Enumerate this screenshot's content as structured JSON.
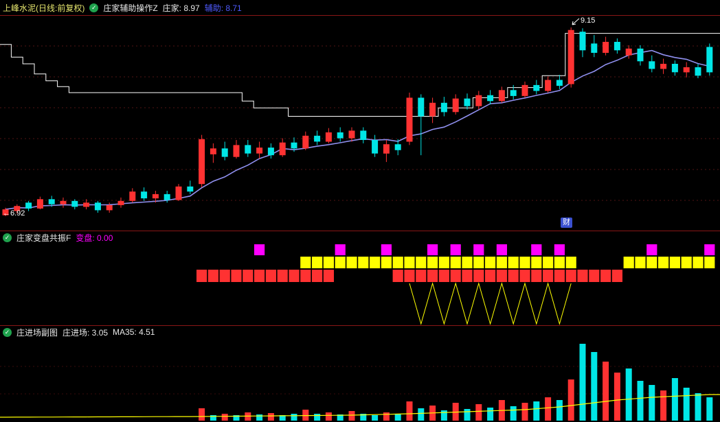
{
  "header": {
    "title": "上峰水泥(日线:前复权)",
    "indicator_name": "庄家辅助操作Z",
    "zhuangjia": "庄家: 8.97",
    "fuzhu": "辅助: 8.71"
  },
  "panel2_header": {
    "name": "庄家变盘共振F",
    "value": "变盘: 0.00"
  },
  "panel3_header": {
    "name": "庄进场副图",
    "value1": "庄进场: 3.05",
    "value2": "MA35: 4.51"
  },
  "annotations": {
    "high": "9.15",
    "low": "6.92",
    "low_arrow": "←",
    "badge": "财"
  },
  "icons": {
    "indicator_toggle": "✓"
  },
  "colors": {
    "up": "#ff3232",
    "down": "#00e6e6",
    "ma": "#9090f0",
    "white_line": "#ffffff",
    "yellow": "#ffff00",
    "magenta": "#ff00ff",
    "grid": "#521414",
    "separator": "#8a1616"
  },
  "chart_data": [
    {
      "id": "main",
      "type": "candlestick",
      "title": "上峰水泥 日线 前复权",
      "indicator": "庄家辅助操作Z",
      "values": {
        "庄家": 8.97,
        "辅助": 8.71
      },
      "price_high_label": 9.15,
      "price_low_label": 6.92,
      "candles": [
        [
          6.93,
          7.02,
          6.92,
          7.0
        ],
        [
          6.98,
          7.06,
          6.95,
          7.04
        ],
        [
          7.08,
          7.1,
          6.98,
          7.01
        ],
        [
          7.01,
          7.15,
          7.0,
          7.12
        ],
        [
          7.12,
          7.16,
          7.03,
          7.06
        ],
        [
          7.06,
          7.14,
          7.02,
          7.1
        ],
        [
          7.1,
          7.12,
          7.0,
          7.03
        ],
        [
          7.03,
          7.12,
          7.0,
          7.08
        ],
        [
          7.08,
          7.1,
          6.96,
          6.99
        ],
        [
          6.99,
          7.08,
          6.96,
          7.05
        ],
        [
          7.05,
          7.14,
          7.02,
          7.1
        ],
        [
          7.1,
          7.25,
          7.08,
          7.21
        ],
        [
          7.21,
          7.26,
          7.1,
          7.13
        ],
        [
          7.13,
          7.22,
          7.08,
          7.18
        ],
        [
          7.18,
          7.22,
          7.08,
          7.11
        ],
        [
          7.11,
          7.3,
          7.1,
          7.27
        ],
        [
          7.27,
          7.34,
          7.18,
          7.21
        ],
        [
          7.3,
          7.88,
          7.26,
          7.83
        ],
        [
          7.65,
          7.78,
          7.55,
          7.72
        ],
        [
          7.72,
          7.8,
          7.58,
          7.62
        ],
        [
          7.62,
          7.82,
          7.6,
          7.76
        ],
        [
          7.76,
          7.82,
          7.62,
          7.66
        ],
        [
          7.66,
          7.8,
          7.6,
          7.73
        ],
        [
          7.73,
          7.78,
          7.6,
          7.64
        ],
        [
          7.64,
          7.84,
          7.62,
          7.79
        ],
        [
          7.79,
          7.85,
          7.68,
          7.72
        ],
        [
          7.72,
          7.92,
          7.7,
          7.87
        ],
        [
          7.87,
          7.93,
          7.76,
          7.8
        ],
        [
          7.8,
          7.96,
          7.78,
          7.91
        ],
        [
          7.91,
          7.97,
          7.8,
          7.84
        ],
        [
          7.84,
          7.97,
          7.8,
          7.93
        ],
        [
          7.93,
          7.97,
          7.78,
          7.82
        ],
        [
          7.82,
          7.88,
          7.62,
          7.66
        ],
        [
          7.66,
          7.82,
          7.56,
          7.77
        ],
        [
          7.77,
          7.83,
          7.64,
          7.7
        ],
        [
          7.8,
          8.38,
          7.76,
          8.32
        ],
        [
          8.32,
          8.36,
          7.64,
          8.1
        ],
        [
          8.1,
          8.32,
          8.02,
          8.26
        ],
        [
          8.26,
          8.33,
          8.1,
          8.15
        ],
        [
          8.15,
          8.36,
          8.12,
          8.31
        ],
        [
          8.31,
          8.37,
          8.18,
          8.22
        ],
        [
          8.22,
          8.4,
          8.18,
          8.35
        ],
        [
          8.35,
          8.41,
          8.24,
          8.28
        ],
        [
          8.28,
          8.45,
          8.26,
          8.41
        ],
        [
          8.41,
          8.47,
          8.3,
          8.34
        ],
        [
          8.34,
          8.51,
          8.32,
          8.47
        ],
        [
          8.47,
          8.53,
          8.36,
          8.4
        ],
        [
          8.4,
          8.57,
          8.38,
          8.53
        ],
        [
          8.53,
          8.59,
          8.42,
          8.46
        ],
        [
          8.48,
          9.15,
          8.44,
          9.12
        ],
        [
          9.1,
          9.14,
          8.8,
          8.88
        ],
        [
          8.96,
          9.06,
          8.8,
          8.85
        ],
        [
          8.85,
          9.04,
          8.82,
          8.98
        ],
        [
          8.98,
          9.02,
          8.84,
          8.88
        ],
        [
          8.82,
          8.94,
          8.78,
          8.9
        ],
        [
          8.9,
          8.94,
          8.7,
          8.75
        ],
        [
          8.75,
          8.82,
          8.62,
          8.66
        ],
        [
          8.66,
          8.78,
          8.6,
          8.72
        ],
        [
          8.72,
          8.76,
          8.58,
          8.62
        ],
        [
          8.62,
          8.74,
          8.56,
          8.68
        ],
        [
          8.68,
          8.72,
          8.55,
          8.58
        ],
        [
          8.92,
          8.96,
          8.58,
          8.62
        ]
      ],
      "white_line": [
        8.95,
        8.8,
        8.72,
        8.6,
        8.52,
        8.45,
        8.38,
        8.38,
        8.38,
        8.38,
        8.38,
        8.38,
        8.38,
        8.38,
        8.38,
        8.38,
        8.38,
        8.38,
        8.38,
        8.38,
        8.38,
        8.28,
        8.2,
        8.2,
        8.2,
        8.1,
        8.1,
        8.1,
        8.1,
        8.1,
        8.1,
        8.1,
        8.1,
        8.1,
        8.1,
        8.1,
        8.1,
        8.1,
        8.2,
        8.2,
        8.2,
        8.32,
        8.32,
        8.32,
        8.44,
        8.44,
        8.44,
        8.58,
        8.58,
        9.08,
        9.08,
        9.08,
        9.08,
        9.08,
        9.08,
        9.08,
        9.08,
        9.08,
        9.08,
        9.08,
        9.08,
        9.08
      ],
      "ma_period": 8
    },
    {
      "id": "resonance",
      "type": "heatmap",
      "title": "庄家变盘共振F",
      "values": {
        "变盘": 0.0
      },
      "magenta_cols": [
        22,
        29,
        33,
        37,
        39,
        41,
        43,
        46,
        48,
        56,
        61
      ],
      "yellow_ranges": [
        [
          26,
          49
        ],
        [
          54,
          61
        ]
      ],
      "red_ranges": [
        [
          17,
          28
        ],
        [
          34,
          53
        ]
      ],
      "zigzag": {
        "from": 35,
        "to": 49
      }
    },
    {
      "id": "entry",
      "type": "bar",
      "title": "庄进场副图",
      "values": {
        "庄进场": 3.05,
        "MA35": 4.51
      },
      "bars": [
        [
          17,
          18,
          "r"
        ],
        [
          18,
          8,
          "c"
        ],
        [
          19,
          10,
          "r"
        ],
        [
          20,
          8,
          "c"
        ],
        [
          21,
          12,
          "r"
        ],
        [
          22,
          9,
          "c"
        ],
        [
          23,
          11,
          "r"
        ],
        [
          24,
          8,
          "c"
        ],
        [
          25,
          10,
          "c"
        ],
        [
          26,
          16,
          "r"
        ],
        [
          27,
          10,
          "c"
        ],
        [
          28,
          12,
          "r"
        ],
        [
          29,
          9,
          "c"
        ],
        [
          30,
          14,
          "r"
        ],
        [
          31,
          10,
          "c"
        ],
        [
          32,
          8,
          "c"
        ],
        [
          33,
          12,
          "r"
        ],
        [
          34,
          10,
          "c"
        ],
        [
          35,
          28,
          "r"
        ],
        [
          36,
          18,
          "c"
        ],
        [
          37,
          22,
          "r"
        ],
        [
          38,
          15,
          "c"
        ],
        [
          39,
          26,
          "r"
        ],
        [
          40,
          17,
          "c"
        ],
        [
          41,
          24,
          "r"
        ],
        [
          42,
          19,
          "c"
        ],
        [
          43,
          30,
          "r"
        ],
        [
          44,
          21,
          "c"
        ],
        [
          45,
          26,
          "r"
        ],
        [
          46,
          28,
          "c"
        ],
        [
          47,
          34,
          "r"
        ],
        [
          48,
          30,
          "c"
        ],
        [
          49,
          60,
          "r"
        ],
        [
          50,
          112,
          "c"
        ],
        [
          51,
          100,
          "c"
        ],
        [
          52,
          86,
          "r"
        ],
        [
          53,
          70,
          "r"
        ],
        [
          54,
          76,
          "c"
        ],
        [
          55,
          58,
          "c"
        ],
        [
          56,
          52,
          "c"
        ],
        [
          57,
          44,
          "r"
        ],
        [
          58,
          62,
          "c"
        ],
        [
          59,
          48,
          "c"
        ],
        [
          60,
          40,
          "c"
        ],
        [
          61,
          34,
          "c"
        ]
      ],
      "ma_anchors": [
        [
          0,
          5
        ],
        [
          17,
          6
        ],
        [
          30,
          8
        ],
        [
          35,
          10
        ],
        [
          40,
          13
        ],
        [
          45,
          16
        ],
        [
          48,
          20
        ],
        [
          50,
          24
        ],
        [
          53,
          30
        ],
        [
          56,
          34
        ],
        [
          61,
          38
        ]
      ]
    }
  ]
}
